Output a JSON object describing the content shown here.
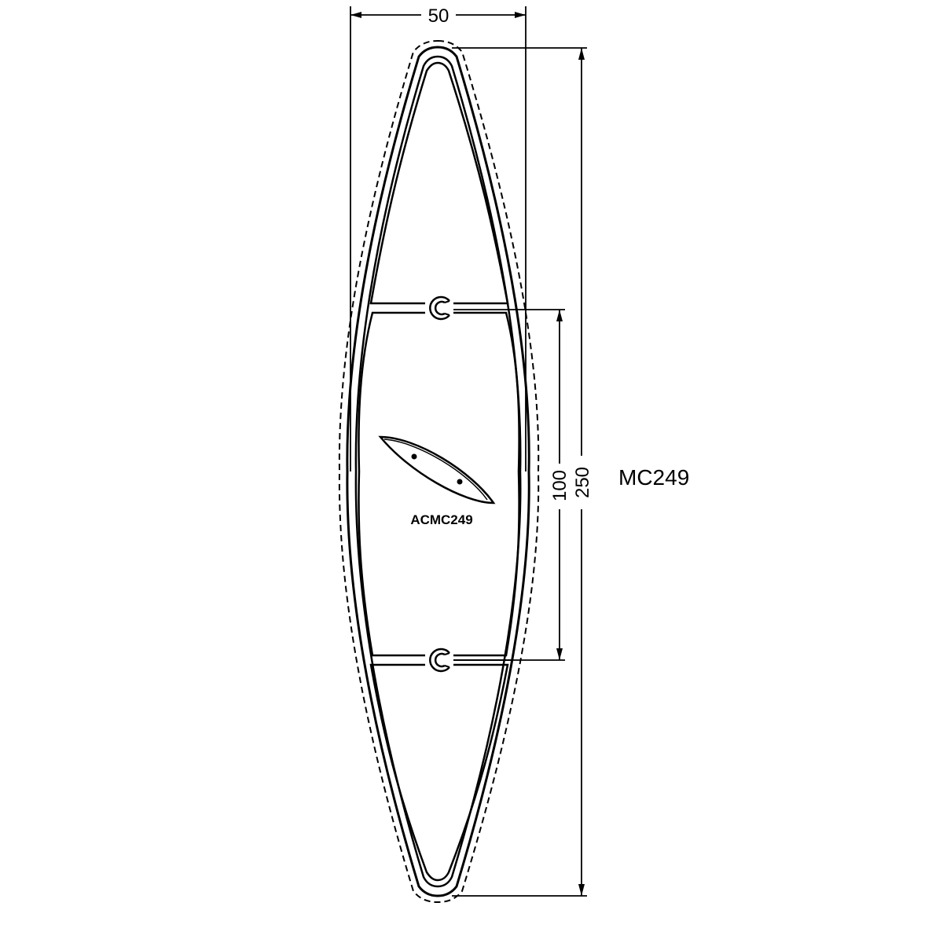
{
  "drawing": {
    "product_code": "MC249",
    "accessory_code": "ACMC249",
    "dimensions": {
      "width": "50",
      "height_total": "250",
      "height_inner": "100"
    },
    "line_color": "#000000",
    "background": "#ffffff"
  }
}
